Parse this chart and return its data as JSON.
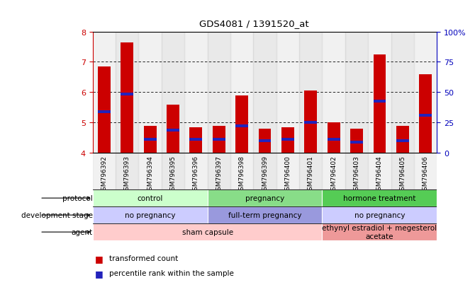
{
  "title": "GDS4081 / 1391520_at",
  "samples": [
    "GSM796392",
    "GSM796393",
    "GSM796394",
    "GSM796395",
    "GSM796396",
    "GSM796397",
    "GSM796398",
    "GSM796399",
    "GSM796400",
    "GSM796401",
    "GSM796402",
    "GSM796403",
    "GSM796404",
    "GSM796405",
    "GSM796406"
  ],
  "bar_values": [
    6.85,
    7.65,
    4.9,
    5.6,
    4.85,
    4.9,
    5.9,
    4.8,
    4.85,
    6.05,
    5.0,
    4.8,
    7.25,
    4.9,
    6.6
  ],
  "blue_values": [
    5.35,
    5.95,
    4.45,
    4.75,
    4.45,
    4.45,
    4.9,
    4.4,
    4.45,
    5.0,
    4.45,
    4.35,
    5.7,
    4.4,
    5.25
  ],
  "bar_bottom": 4.0,
  "ymin": 4.0,
  "ymax": 8.0,
  "yticks": [
    4,
    5,
    6,
    7,
    8
  ],
  "right_ytick_positions": [
    4.0,
    5.0,
    6.0,
    7.0,
    8.0
  ],
  "right_ytick_labels": [
    "0",
    "25",
    "50",
    "75",
    "100%"
  ],
  "bar_color": "#cc0000",
  "blue_color": "#2222bb",
  "bar_width": 0.55,
  "col_bg_even": "#e0e0e0",
  "col_bg_odd": "#d0d0d0",
  "protocol_groups": [
    {
      "label": "control",
      "start": 0,
      "end": 4,
      "color": "#ccffcc"
    },
    {
      "label": "pregnancy",
      "start": 5,
      "end": 9,
      "color": "#88dd88"
    },
    {
      "label": "hormone treatment",
      "start": 10,
      "end": 14,
      "color": "#55cc55"
    }
  ],
  "dev_stage_groups": [
    {
      "label": "no pregnancy",
      "start": 0,
      "end": 4,
      "color": "#ccccff"
    },
    {
      "label": "full-term pregnancy",
      "start": 5,
      "end": 9,
      "color": "#9999dd"
    },
    {
      "label": "no pregnancy",
      "start": 10,
      "end": 14,
      "color": "#ccccff"
    }
  ],
  "agent_groups": [
    {
      "label": "sham capsule",
      "start": 0,
      "end": 9,
      "color": "#ffcccc"
    },
    {
      "label": "ethynyl estradiol + megesterol\nacetate",
      "start": 10,
      "end": 14,
      "color": "#ee9999"
    }
  ],
  "row_labels": [
    "protocol",
    "development stage",
    "agent"
  ],
  "legend_items": [
    {
      "color": "#cc0000",
      "label": "transformed count"
    },
    {
      "color": "#2222bb",
      "label": "percentile rank within the sample"
    }
  ],
  "bg_color": "#ffffff",
  "axis_color_left": "#cc0000",
  "axis_color_right": "#0000bb"
}
